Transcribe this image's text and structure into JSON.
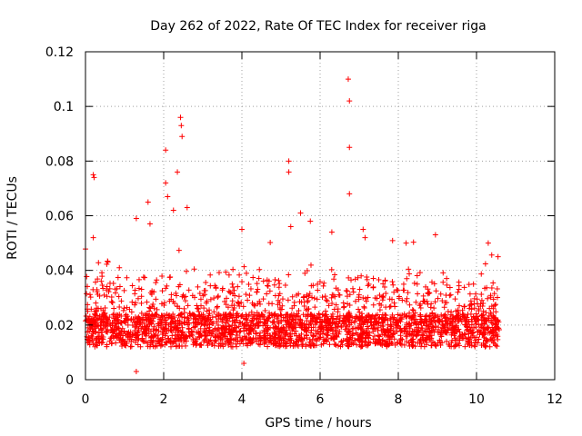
{
  "chart_data": {
    "type": "scatter",
    "title": "Day 262 of 2022, Rate Of TEC Index for receiver riga",
    "xlabel": "GPS time / hours",
    "ylabel": "ROTI / TECUs",
    "xlim": [
      0,
      12
    ],
    "ylim": [
      0,
      0.12
    ],
    "x_ticks": [
      "0",
      "2",
      "4",
      "6",
      "8",
      "10",
      "12"
    ],
    "y_ticks": [
      "0",
      "0.02",
      "0.04",
      "0.06",
      "0.08",
      "0.1",
      "0.12"
    ],
    "grid": true,
    "marker": "+",
    "color": "#ff0000",
    "series": [
      {
        "description_of_bulk": "dense band of points between 0.01 and 0.03 from 0 to ~10.6 hours",
        "x_range": [
          0,
          10.6
        ],
        "typical_y_range": [
          0.01,
          0.03
        ],
        "notable_points": [
          [
            0.2,
            0.075
          ],
          [
            0.22,
            0.074
          ],
          [
            0.2,
            0.052
          ],
          [
            1.3,
            0.059
          ],
          [
            1.3,
            0.003
          ],
          [
            1.6,
            0.065
          ],
          [
            1.65,
            0.057
          ],
          [
            2.05,
            0.084
          ],
          [
            2.05,
            0.072
          ],
          [
            2.1,
            0.067
          ],
          [
            2.25,
            0.062
          ],
          [
            2.35,
            0.076
          ],
          [
            2.43,
            0.096
          ],
          [
            2.45,
            0.093
          ],
          [
            2.47,
            0.089
          ],
          [
            2.6,
            0.063
          ],
          [
            4.0,
            0.055
          ],
          [
            4.05,
            0.006
          ],
          [
            5.2,
            0.08
          ],
          [
            5.2,
            0.076
          ],
          [
            5.25,
            0.056
          ],
          [
            5.5,
            0.061
          ],
          [
            5.75,
            0.058
          ],
          [
            6.3,
            0.054
          ],
          [
            6.72,
            0.11
          ],
          [
            6.75,
            0.102
          ],
          [
            6.75,
            0.085
          ],
          [
            6.75,
            0.068
          ],
          [
            7.1,
            0.055
          ],
          [
            7.15,
            0.052
          ],
          [
            8.2,
            0.05
          ],
          [
            8.95,
            0.053
          ],
          [
            10.3,
            0.05
          ],
          [
            10.55,
            0.045
          ]
        ]
      }
    ]
  }
}
